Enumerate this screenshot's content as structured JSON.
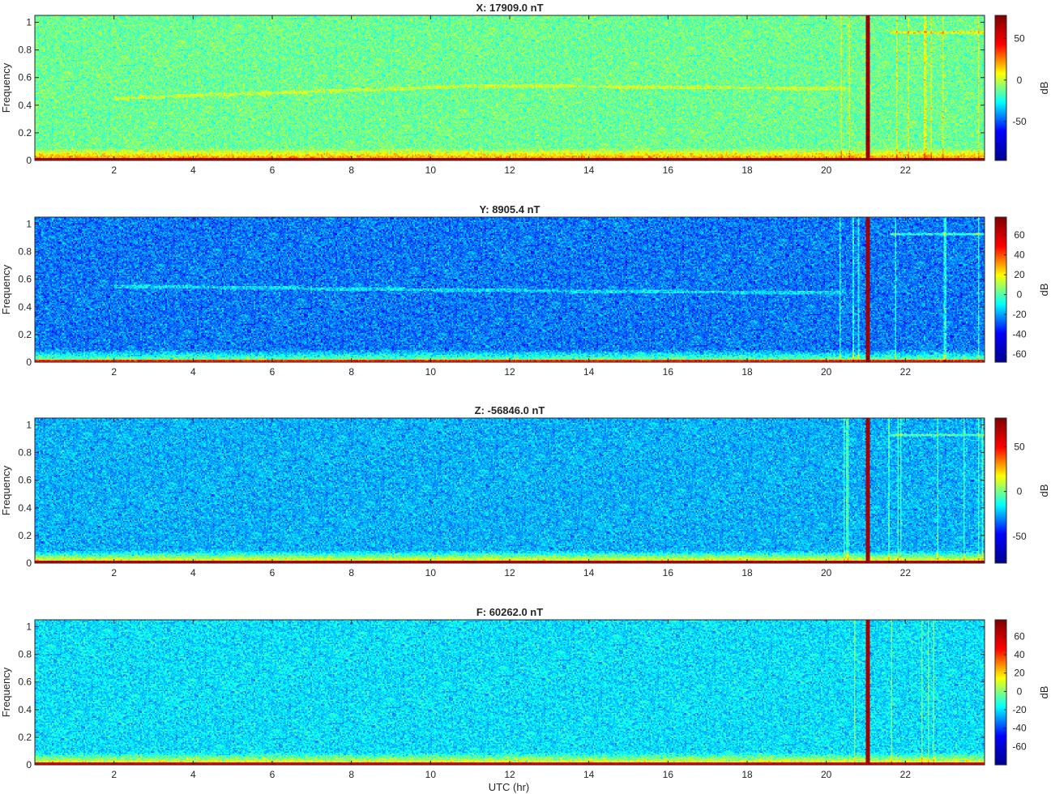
{
  "figure": {
    "xlabel": "UTC (hr)",
    "ylabel": "Frequency",
    "colorbar_label": "dB",
    "colormap": "jet",
    "colormap_stops": [
      "#00008f",
      "#0000ff",
      "#00ffff",
      "#ffff00",
      "#ff0000",
      "#800000"
    ]
  },
  "chart_data": [
    {
      "type": "heatmap",
      "title": "X: 17909.0 nT",
      "xlabel": "",
      "ylabel": "Frequency",
      "x_ticks": [
        "2",
        "4",
        "6",
        "8",
        "10",
        "12",
        "14",
        "16",
        "18",
        "20",
        "22"
      ],
      "y_ticks": [
        "0",
        "0.2",
        "0.4",
        "0.6",
        "0.8",
        "1"
      ],
      "xlim": [
        0,
        24
      ],
      "ylim": [
        0,
        1.05
      ],
      "color_range": [
        -97,
        78
      ],
      "colorbar_ticks": [
        "50",
        "0",
        "-50"
      ],
      "colorbar_tick_values": [
        50,
        0,
        -50
      ],
      "background_db": -12,
      "low_freq_band_db": 40,
      "vertical_line_hr": 21.05,
      "vertical_line_db": 70,
      "horizontal_line_freq": 0.93,
      "horizontal_line_start_hr": 21.6,
      "drift_line_freq": [
        0.45,
        0.54,
        0.52
      ]
    },
    {
      "type": "heatmap",
      "title": "Y: 8905.4 nT",
      "xlabel": "",
      "ylabel": "Frequency",
      "x_ticks": [
        "2",
        "4",
        "6",
        "8",
        "10",
        "12",
        "14",
        "16",
        "18",
        "20",
        "22"
      ],
      "y_ticks": [
        "0",
        "0.2",
        "0.4",
        "0.6",
        "0.8",
        "1"
      ],
      "xlim": [
        0,
        24
      ],
      "ylim": [
        0,
        1.05
      ],
      "color_range": [
        -68,
        78
      ],
      "colorbar_ticks": [
        "60",
        "40",
        "20",
        "0",
        "-20",
        "-40",
        "-60"
      ],
      "colorbar_tick_values": [
        60,
        40,
        20,
        0,
        -20,
        -40,
        -60
      ],
      "background_db": -25,
      "low_freq_band_db": 20,
      "vertical_line_hr": 21.05,
      "vertical_line_db": 70,
      "horizontal_line_freq": 0.93,
      "horizontal_line_start_hr": 21.6,
      "drift_line_freq": [
        0.55,
        0.52,
        0.5
      ]
    },
    {
      "type": "heatmap",
      "title": "Z: -56846.0 nT",
      "xlabel": "",
      "ylabel": "Frequency",
      "x_ticks": [
        "2",
        "4",
        "6",
        "8",
        "10",
        "12",
        "14",
        "16",
        "18",
        "20",
        "22"
      ],
      "y_ticks": [
        "0",
        "0.2",
        "0.4",
        "0.6",
        "0.8",
        "1"
      ],
      "xlim": [
        0,
        24
      ],
      "ylim": [
        0,
        1.05
      ],
      "color_range": [
        -80,
        82
      ],
      "colorbar_ticks": [
        "50",
        "0",
        "-50"
      ],
      "colorbar_tick_values": [
        50,
        0,
        -50
      ],
      "background_db": -25,
      "low_freq_band_db": 40,
      "vertical_line_hr": 21.05,
      "vertical_line_db": 72,
      "horizontal_line_freq": 0.93,
      "horizontal_line_start_hr": 21.6,
      "drift_line_freq": null
    },
    {
      "type": "heatmap",
      "title": "F: 60262.0 nT",
      "xlabel": "UTC (hr)",
      "ylabel": "Frequency",
      "x_ticks": [
        "2",
        "4",
        "6",
        "8",
        "10",
        "12",
        "14",
        "16",
        "18",
        "20",
        "22"
      ],
      "y_ticks": [
        "0",
        "0.2",
        "0.4",
        "0.6",
        "0.8",
        "1"
      ],
      "xlim": [
        0,
        24
      ],
      "ylim": [
        0,
        1.05
      ],
      "color_range": [
        -80,
        78
      ],
      "colorbar_ticks": [
        "60",
        "40",
        "20",
        "0",
        "-20",
        "-40",
        "-60"
      ],
      "colorbar_tick_values": [
        60,
        40,
        20,
        0,
        -20,
        -40,
        -60
      ],
      "background_db": -20,
      "low_freq_band_db": 30,
      "vertical_line_hr": 21.05,
      "vertical_line_db": 68,
      "horizontal_line_freq": null,
      "horizontal_line_start_hr": null,
      "drift_line_freq": null
    }
  ]
}
